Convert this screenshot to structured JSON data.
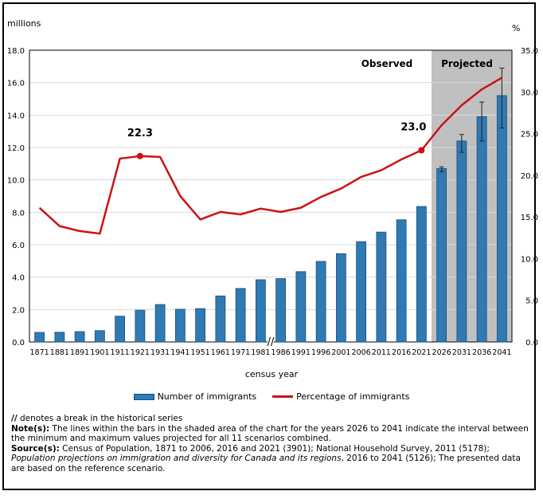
{
  "chart_data": {
    "type": "bar",
    "xlabel": "census year",
    "ylabel_left": "millions",
    "ylabel_right": "%",
    "ylim_left": [
      0,
      18
    ],
    "yticks_left": [
      "0.0",
      "2.0",
      "4.0",
      "6.0",
      "8.0",
      "10.0",
      "12.0",
      "14.0",
      "16.0",
      "18.0"
    ],
    "ylim_right": [
      0,
      35
    ],
    "yticks_right": [
      "0.0",
      "5.0",
      "10.0",
      "15.0",
      "20.0",
      "25.0",
      "30.0",
      "35.0"
    ],
    "categories": [
      "1871",
      "1881",
      "1891",
      "1901",
      "1911",
      "1921",
      "1931",
      "1941",
      "1951",
      "1961",
      "1971",
      "1981",
      "1986",
      "1991",
      "1996",
      "2001",
      "2006",
      "2011",
      "2016",
      "2021",
      "2026",
      "2031",
      "2036",
      "2041"
    ],
    "series": [
      {
        "name": "Number of immigrants",
        "kind": "bar",
        "axis": "left",
        "values": [
          0.59,
          0.6,
          0.64,
          0.7,
          1.59,
          1.96,
          2.31,
          2.02,
          2.06,
          2.84,
          3.3,
          3.84,
          3.91,
          4.34,
          4.97,
          5.45,
          6.19,
          6.78,
          7.54,
          8.36,
          10.7,
          12.4,
          13.9,
          15.2
        ]
      },
      {
        "name": "Percentage of immigrants",
        "kind": "line",
        "axis": "right",
        "values": [
          16.1,
          13.9,
          13.3,
          13.0,
          22.0,
          22.3,
          22.2,
          17.5,
          14.7,
          15.6,
          15.3,
          16.0,
          15.6,
          16.1,
          17.4,
          18.4,
          19.8,
          20.6,
          21.9,
          23.0,
          26.0,
          28.4,
          30.3,
          31.7
        ]
      }
    ],
    "error_bars": [
      {
        "category": "2026",
        "low": 10.5,
        "high": 10.8
      },
      {
        "category": "2031",
        "low": 11.7,
        "high": 12.8
      },
      {
        "category": "2036",
        "low": 12.4,
        "high": 14.8
      },
      {
        "category": "2041",
        "low": 13.2,
        "high": 16.9
      }
    ],
    "highlighted_points": [
      {
        "category": "1921",
        "label": "22.3"
      },
      {
        "category": "2021",
        "label": "23.0"
      }
    ],
    "shaded_region": {
      "from": "2026",
      "to": "2041",
      "label": "Projected"
    },
    "observed_label": "Observed",
    "axis_break_label": "//",
    "grid": true,
    "legend": "bottom",
    "colors": {
      "bar": "#2f7ab3",
      "bar_edge": "#1c4e78",
      "line": "#cc1212",
      "shade": "#c0c0c0",
      "grid": "#d9d9d9"
    }
  },
  "notes": {
    "break_symbol": "//",
    "break_text": " denotes a break in the historical series",
    "note_label": "Note(s):",
    "note_text": " The lines within the bars in the shaded area of the chart for the years 2026 to 2041 indicate the interval between the minimum and maximum values projected for all 11 scenarios combined.",
    "source_label": "Source(s):",
    "source_text": " Census of Population, 1871 to 2006, 2016 and 2021 (3901); National Household Survey, 2011 (5178); ",
    "source_italic": "Population projections on immigration and diversity for Canada and its regions",
    "source_end": ", 2016 to 2041 (5126); The presented data are based on the reference scenario."
  }
}
